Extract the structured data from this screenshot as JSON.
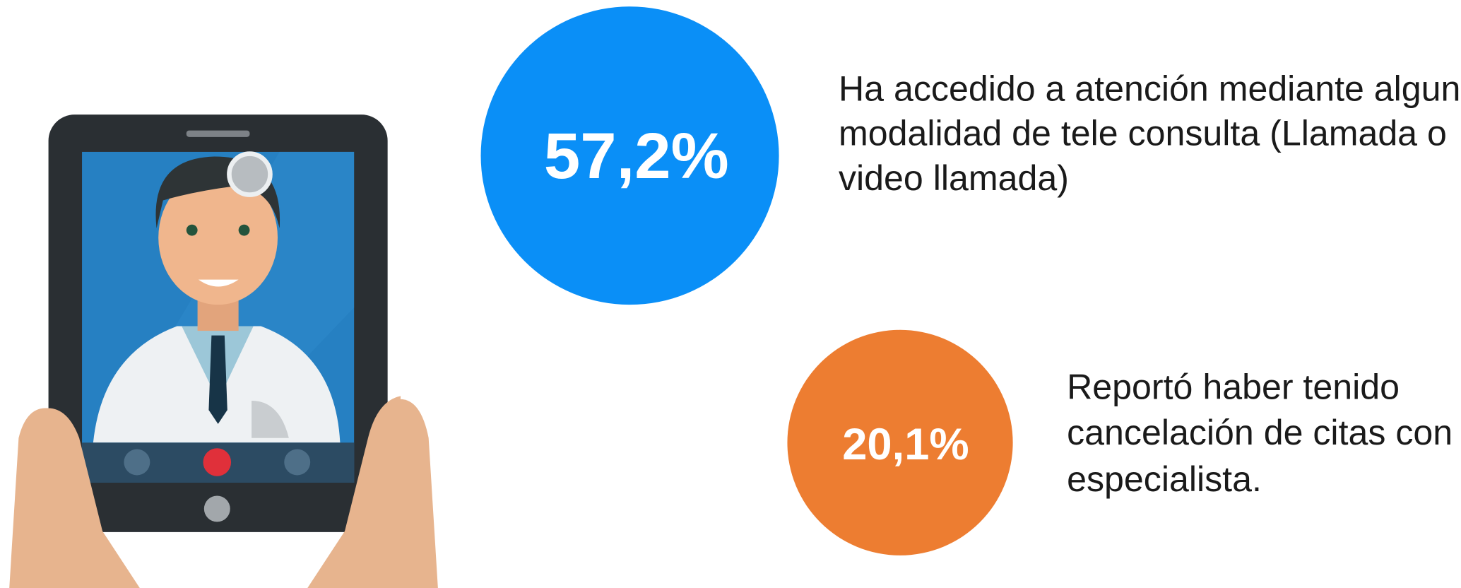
{
  "stats": [
    {
      "value": "57,2%",
      "description": [
        "Ha accedido a atención mediante alguna",
        "modalidad de tele consulta (Llamada o",
        "video llamada)"
      ]
    },
    {
      "value": "20,1%",
      "description": [
        "Reportó haber tenido",
        "cancelación de citas con",
        "especialista."
      ]
    }
  ]
}
